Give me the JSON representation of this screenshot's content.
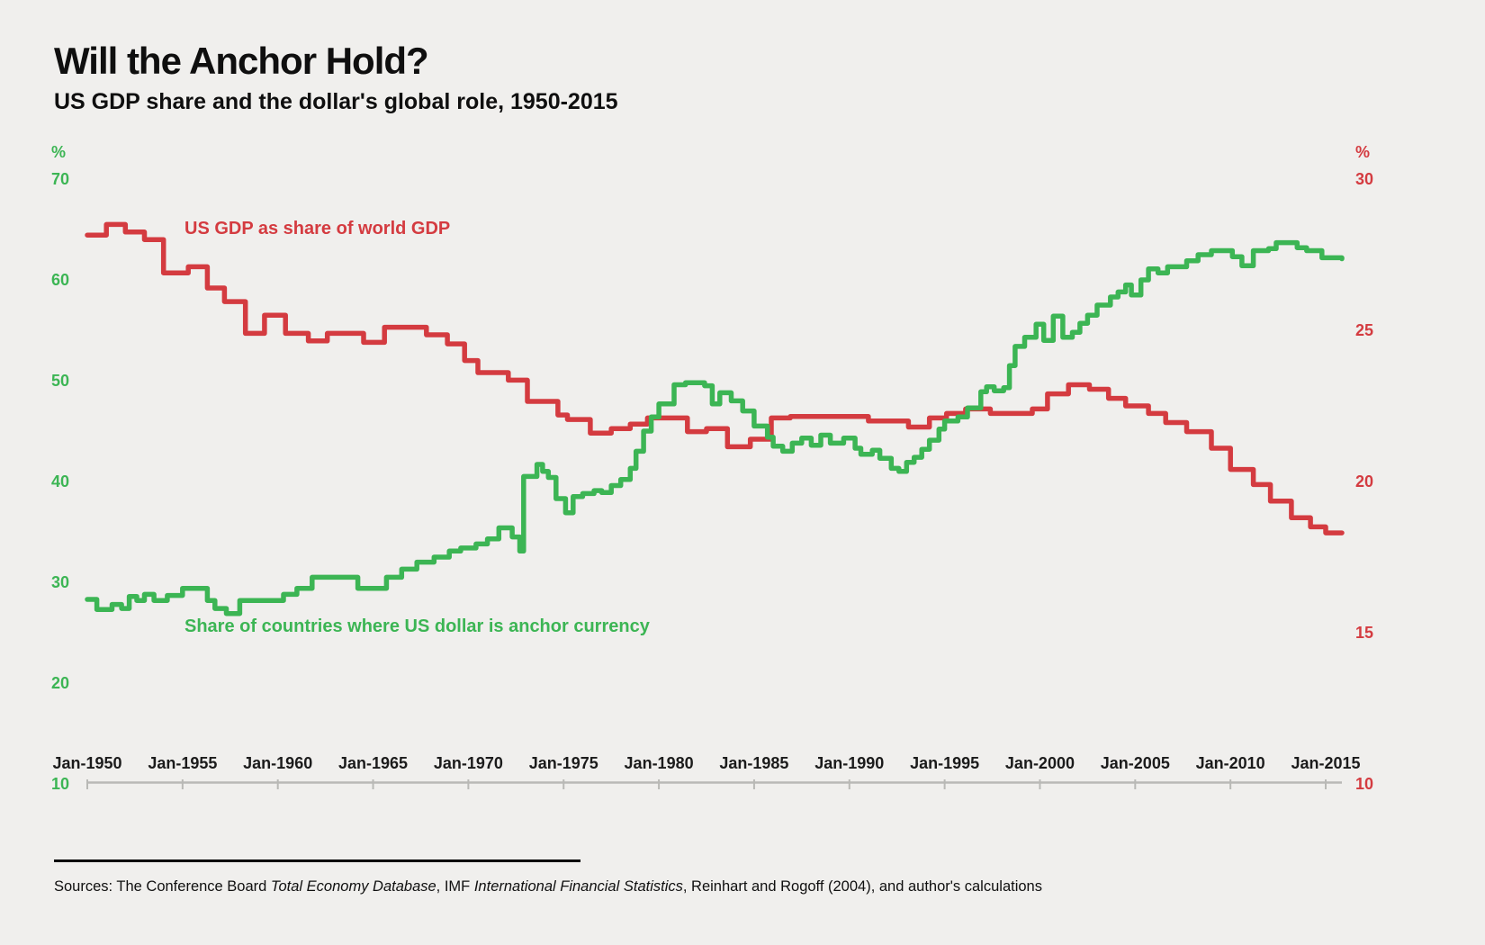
{
  "page": {
    "background": "#f0efed"
  },
  "header": {
    "title": "Will the Anchor Hold?",
    "subtitle": "US GDP share and the dollar's global role, 1950-2015"
  },
  "footer": {
    "sources_prefix": "Sources: The Conference Board ",
    "source_italic_1": "Total Economy Database",
    "sources_mid": ", IMF ",
    "source_italic_2": "International Financial Statistics",
    "sources_suffix": ", Reinhart and Rogoff (2004), and author's calculations"
  },
  "chart_data": {
    "type": "line",
    "title": "Will the Anchor Hold?",
    "subtitle": "US GDP share and the dollar's global role, 1950-2015",
    "grid": "off",
    "legend": "inline-labels",
    "axis_line_color": "#b9b9b6",
    "x_axis": {
      "tick_labels": [
        "Jan-1950",
        "Jan-1955",
        "Jan-1960",
        "Jan-1965",
        "Jan-1970",
        "Jan-1975",
        "Jan-1980",
        "Jan-1985",
        "Jan-1990",
        "Jan-1995",
        "Jan-2000",
        "Jan-2005",
        "Jan-2010",
        "Jan-2015"
      ],
      "tick_years": [
        1950,
        1955,
        1960,
        1965,
        1970,
        1975,
        1980,
        1985,
        1990,
        1995,
        2000,
        2005,
        2010,
        2015
      ],
      "range_years": [
        1950,
        2015.85
      ]
    },
    "left_axis": {
      "unit": "%",
      "color": "#3cb554",
      "ticks": [
        70,
        60,
        50,
        40,
        30,
        20,
        10
      ],
      "range": [
        10,
        70
      ],
      "applies_to": "Share of countries where US dollar is anchor currency"
    },
    "right_axis": {
      "unit": "%",
      "color": "#d43b40",
      "ticks": [
        30,
        25,
        20,
        15,
        10
      ],
      "range": [
        10,
        30
      ],
      "applies_to": "US GDP as share of world GDP"
    },
    "series": [
      {
        "name": "US GDP as share of world GDP",
        "axis": "right",
        "color": "#d43b40",
        "interpolation": "step-after",
        "points": [
          [
            1950,
            28.15
          ],
          [
            1951,
            28.5
          ],
          [
            1952,
            28.25
          ],
          [
            1953,
            28.0
          ],
          [
            1954,
            26.9
          ],
          [
            1955.3,
            27.1
          ],
          [
            1956.3,
            26.4
          ],
          [
            1957.2,
            25.95
          ],
          [
            1958.3,
            24.9
          ],
          [
            1959.3,
            25.5
          ],
          [
            1960.4,
            24.9
          ],
          [
            1961.6,
            24.65
          ],
          [
            1962.6,
            24.9
          ],
          [
            1964.5,
            24.6
          ],
          [
            1965.6,
            25.1
          ],
          [
            1967.8,
            24.85
          ],
          [
            1968.9,
            24.55
          ],
          [
            1969.8,
            24.0
          ],
          [
            1970.5,
            23.6
          ],
          [
            1972.1,
            23.35
          ],
          [
            1973.1,
            22.65
          ],
          [
            1974.7,
            22.2
          ],
          [
            1975.2,
            22.05
          ],
          [
            1976.4,
            21.6
          ],
          [
            1977.5,
            21.75
          ],
          [
            1978.5,
            21.9
          ],
          [
            1979.4,
            22.1
          ],
          [
            1981.5,
            21.65
          ],
          [
            1982.5,
            21.75
          ],
          [
            1983.6,
            21.15
          ],
          [
            1984.8,
            21.4
          ],
          [
            1985.9,
            22.1
          ],
          [
            1986.9,
            22.15
          ],
          [
            1991.0,
            22.0
          ],
          [
            1993.1,
            21.8
          ],
          [
            1994.2,
            22.1
          ],
          [
            1995.1,
            22.25
          ],
          [
            1996.1,
            22.4
          ],
          [
            1997.4,
            22.25
          ],
          [
            1999.6,
            22.4
          ],
          [
            2000.4,
            22.9
          ],
          [
            2001.5,
            23.2
          ],
          [
            2002.6,
            23.05
          ],
          [
            2003.6,
            22.75
          ],
          [
            2004.5,
            22.5
          ],
          [
            2005.7,
            22.25
          ],
          [
            2006.6,
            21.95
          ],
          [
            2007.7,
            21.65
          ],
          [
            2009.0,
            21.1
          ],
          [
            2010.0,
            20.4
          ],
          [
            2011.2,
            19.9
          ],
          [
            2012.1,
            19.35
          ],
          [
            2013.2,
            18.8
          ],
          [
            2014.2,
            18.5
          ],
          [
            2015.0,
            18.3
          ],
          [
            2015.85,
            18.3
          ]
        ]
      },
      {
        "name": "Share of countries where US dollar is anchor currency",
        "axis": "left",
        "color": "#3cb554",
        "interpolation": "step-after",
        "points": [
          [
            1950,
            28.3
          ],
          [
            1950.5,
            27.3
          ],
          [
            1951.3,
            27.8
          ],
          [
            1951.8,
            27.4
          ],
          [
            1952.2,
            28.6
          ],
          [
            1952.6,
            28.2
          ],
          [
            1953.0,
            28.8
          ],
          [
            1953.5,
            28.2
          ],
          [
            1954.2,
            28.7
          ],
          [
            1955.0,
            29.4
          ],
          [
            1956.3,
            28.2
          ],
          [
            1956.7,
            27.4
          ],
          [
            1957.3,
            26.9
          ],
          [
            1958.0,
            28.2
          ],
          [
            1960.3,
            28.8
          ],
          [
            1961.0,
            29.4
          ],
          [
            1961.8,
            30.5
          ],
          [
            1964.2,
            29.4
          ],
          [
            1965.7,
            30.5
          ],
          [
            1966.5,
            31.3
          ],
          [
            1967.3,
            32.0
          ],
          [
            1968.2,
            32.5
          ],
          [
            1969.0,
            33.1
          ],
          [
            1969.6,
            33.4
          ],
          [
            1970.4,
            33.8
          ],
          [
            1971.0,
            34.3
          ],
          [
            1971.6,
            35.4
          ],
          [
            1972.3,
            34.5
          ],
          [
            1972.7,
            33.1
          ],
          [
            1972.9,
            40.5
          ],
          [
            1973.6,
            41.7
          ],
          [
            1973.9,
            41.0
          ],
          [
            1974.2,
            40.4
          ],
          [
            1974.6,
            38.3
          ],
          [
            1975.1,
            36.9
          ],
          [
            1975.5,
            38.5
          ],
          [
            1976.0,
            38.8
          ],
          [
            1976.6,
            39.1
          ],
          [
            1977.0,
            38.9
          ],
          [
            1977.5,
            39.6
          ],
          [
            1978.0,
            40.2
          ],
          [
            1978.5,
            41.3
          ],
          [
            1978.8,
            43.0
          ],
          [
            1979.2,
            45.0
          ],
          [
            1979.6,
            46.4
          ],
          [
            1980.0,
            47.7
          ],
          [
            1980.8,
            49.6
          ],
          [
            1981.4,
            49.8
          ],
          [
            1982.4,
            49.5
          ],
          [
            1982.8,
            47.7
          ],
          [
            1983.2,
            48.8
          ],
          [
            1983.8,
            48.0
          ],
          [
            1984.4,
            47.0
          ],
          [
            1985.0,
            45.5
          ],
          [
            1985.7,
            44.4
          ],
          [
            1986.0,
            43.5
          ],
          [
            1986.5,
            43.0
          ],
          [
            1987.0,
            43.8
          ],
          [
            1987.5,
            44.3
          ],
          [
            1988.0,
            43.6
          ],
          [
            1988.5,
            44.6
          ],
          [
            1989.0,
            43.8
          ],
          [
            1989.7,
            44.3
          ],
          [
            1990.3,
            43.3
          ],
          [
            1990.6,
            42.7
          ],
          [
            1991.2,
            43.1
          ],
          [
            1991.6,
            42.3
          ],
          [
            1992.2,
            41.3
          ],
          [
            1992.6,
            41.0
          ],
          [
            1993.0,
            41.9
          ],
          [
            1993.4,
            42.4
          ],
          [
            1993.8,
            43.2
          ],
          [
            1994.2,
            44.1
          ],
          [
            1994.7,
            45.2
          ],
          [
            1995.0,
            46.0
          ],
          [
            1995.7,
            46.4
          ],
          [
            1996.2,
            47.3
          ],
          [
            1996.9,
            48.9
          ],
          [
            1997.2,
            49.4
          ],
          [
            1997.6,
            49.0
          ],
          [
            1998.1,
            49.3
          ],
          [
            1998.4,
            51.5
          ],
          [
            1998.7,
            53.4
          ],
          [
            1999.2,
            54.3
          ],
          [
            1999.8,
            55.6
          ],
          [
            2000.2,
            54.0
          ],
          [
            2000.7,
            56.4
          ],
          [
            2001.2,
            54.3
          ],
          [
            2001.7,
            54.8
          ],
          [
            2002.1,
            55.7
          ],
          [
            2002.5,
            56.5
          ],
          [
            2003.0,
            57.5
          ],
          [
            2003.7,
            58.3
          ],
          [
            2004.1,
            58.8
          ],
          [
            2004.5,
            59.5
          ],
          [
            2004.8,
            58.5
          ],
          [
            2005.3,
            60.0
          ],
          [
            2005.7,
            61.1
          ],
          [
            2006.2,
            60.7
          ],
          [
            2006.7,
            61.3
          ],
          [
            2007.7,
            61.9
          ],
          [
            2008.3,
            62.5
          ],
          [
            2009.0,
            62.9
          ],
          [
            2010.1,
            62.3
          ],
          [
            2010.6,
            61.4
          ],
          [
            2011.2,
            62.9
          ],
          [
            2012.0,
            63.1
          ],
          [
            2012.4,
            63.7
          ],
          [
            2013.5,
            63.2
          ],
          [
            2014.0,
            62.9
          ],
          [
            2014.8,
            62.2
          ],
          [
            2015.85,
            62.1
          ]
        ]
      }
    ]
  }
}
